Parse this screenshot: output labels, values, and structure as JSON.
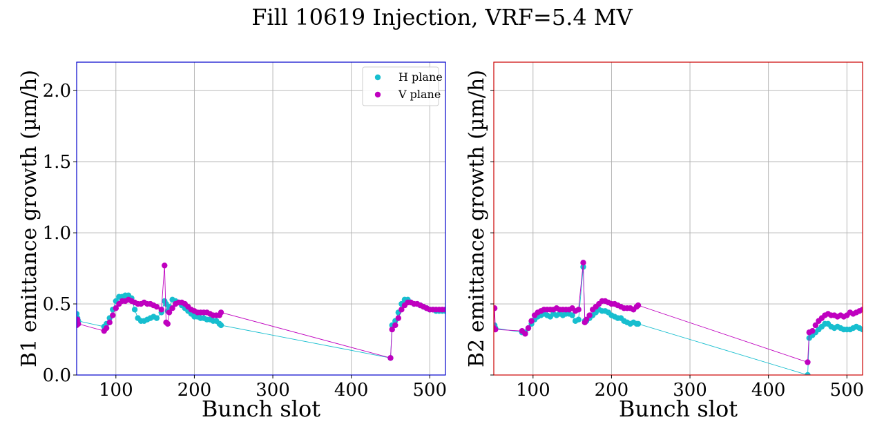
{
  "figure_title": "Fill 10619 Injection, VRF=5.4 MV",
  "colors": {
    "h_plane": "#17becf",
    "v_plane": "#bf00bf",
    "grid": "#b0b0b0",
    "left_frame": "#0000cc",
    "right_frame": "#cc0000"
  },
  "chart_data": [
    {
      "type": "scatter",
      "xlabel": "Bunch slot",
      "ylabel": "B1 emittance growth (µm/h)",
      "xlim": [
        50,
        520
      ],
      "ylim": [
        0,
        2.2
      ],
      "xticks": [
        100,
        200,
        300,
        400,
        500
      ],
      "yticks": [
        0.0,
        0.5,
        1.0,
        1.5,
        2.0
      ],
      "ytick_labels": [
        "0.0",
        "0.5",
        "1.0",
        "1.5",
        "2.0"
      ],
      "grid": true,
      "legend": "top-right",
      "series": [
        {
          "name": "H plane",
          "color": "#17becf",
          "x": [
            50,
            51,
            52,
            85,
            88,
            92,
            96,
            100,
            104,
            108,
            112,
            116,
            120,
            124,
            128,
            132,
            136,
            140,
            144,
            148,
            152,
            158,
            162,
            164,
            166,
            168,
            172,
            176,
            180,
            184,
            188,
            192,
            196,
            200,
            204,
            208,
            212,
            216,
            220,
            224,
            228,
            232,
            234,
            450,
            452,
            456,
            460,
            464,
            468,
            472,
            476,
            480,
            484,
            488,
            492,
            496,
            500,
            504,
            508,
            512,
            516,
            520
          ],
          "y": [
            0.43,
            0.4,
            0.38,
            0.34,
            0.36,
            0.4,
            0.46,
            0.52,
            0.55,
            0.55,
            0.56,
            0.56,
            0.54,
            0.46,
            0.4,
            0.38,
            0.38,
            0.39,
            0.4,
            0.41,
            0.4,
            0.44,
            0.52,
            0.5,
            0.45,
            0.48,
            0.53,
            0.52,
            0.51,
            0.49,
            0.47,
            0.45,
            0.43,
            0.41,
            0.41,
            0.4,
            0.4,
            0.39,
            0.39,
            0.38,
            0.38,
            0.36,
            0.35,
            0.12,
            0.35,
            0.38,
            0.44,
            0.5,
            0.53,
            0.53,
            0.51,
            0.5,
            0.5,
            0.49,
            0.48,
            0.47,
            0.46,
            0.46,
            0.45,
            0.45,
            0.45,
            0.45
          ]
        },
        {
          "name": "V plane",
          "color": "#bf00bf",
          "x": [
            50,
            51,
            52,
            85,
            88,
            92,
            96,
            100,
            104,
            108,
            112,
            116,
            120,
            124,
            128,
            132,
            136,
            140,
            144,
            148,
            152,
            158,
            162,
            164,
            166,
            168,
            172,
            176,
            180,
            184,
            188,
            192,
            196,
            200,
            204,
            208,
            212,
            216,
            220,
            224,
            228,
            232,
            234,
            450,
            452,
            456,
            460,
            464,
            468,
            472,
            476,
            480,
            484,
            488,
            492,
            496,
            500,
            504,
            508,
            512,
            516,
            520
          ],
          "y": [
            0.35,
            0.39,
            0.36,
            0.31,
            0.33,
            0.37,
            0.42,
            0.47,
            0.5,
            0.52,
            0.52,
            0.53,
            0.52,
            0.51,
            0.5,
            0.5,
            0.51,
            0.5,
            0.5,
            0.49,
            0.48,
            0.46,
            0.77,
            0.37,
            0.36,
            0.44,
            0.47,
            0.5,
            0.51,
            0.51,
            0.5,
            0.48,
            0.46,
            0.45,
            0.44,
            0.44,
            0.44,
            0.44,
            0.43,
            0.42,
            0.42,
            0.42,
            0.44,
            0.12,
            0.32,
            0.35,
            0.4,
            0.46,
            0.49,
            0.51,
            0.51,
            0.5,
            0.5,
            0.49,
            0.48,
            0.47,
            0.46,
            0.46,
            0.46,
            0.46,
            0.46,
            0.46
          ]
        }
      ]
    },
    {
      "type": "scatter",
      "xlabel": "Bunch slot",
      "ylabel": "B2 emittance growth (µm/h)",
      "xlim": [
        50,
        520
      ],
      "ylim": [
        0,
        2.2
      ],
      "xticks": [
        100,
        200,
        300,
        400,
        500
      ],
      "yticks": [
        0.0,
        0.5,
        1.0,
        1.5,
        2.0
      ],
      "ytick_labels": [
        "",
        "",
        "",
        "",
        ""
      ],
      "grid": true,
      "series": [
        {
          "name": "H plane",
          "color": "#17becf",
          "x": [
            50,
            51,
            52,
            86,
            90,
            94,
            98,
            102,
            106,
            110,
            114,
            118,
            122,
            126,
            130,
            134,
            138,
            142,
            146,
            150,
            154,
            158,
            164,
            166,
            168,
            172,
            176,
            180,
            184,
            188,
            192,
            196,
            200,
            204,
            208,
            212,
            216,
            220,
            224,
            228,
            232,
            234,
            450,
            452,
            456,
            460,
            464,
            468,
            472,
            476,
            480,
            484,
            488,
            492,
            496,
            500,
            504,
            508,
            512,
            516,
            520
          ],
          "y": [
            0.34,
            0.35,
            0.33,
            0.3,
            0.3,
            0.33,
            0.36,
            0.39,
            0.41,
            0.42,
            0.43,
            0.42,
            0.41,
            0.43,
            0.42,
            0.43,
            0.42,
            0.43,
            0.43,
            0.42,
            0.38,
            0.39,
            0.76,
            0.38,
            0.38,
            0.4,
            0.42,
            0.44,
            0.46,
            0.45,
            0.45,
            0.44,
            0.42,
            0.41,
            0.4,
            0.4,
            0.38,
            0.37,
            0.36,
            0.37,
            0.36,
            0.36,
            0.0,
            0.26,
            0.28,
            0.3,
            0.32,
            0.34,
            0.36,
            0.36,
            0.34,
            0.33,
            0.34,
            0.33,
            0.32,
            0.32,
            0.32,
            0.33,
            0.34,
            0.33,
            0.32
          ]
        },
        {
          "name": "V plane",
          "color": "#bf00bf",
          "x": [
            50,
            51,
            52,
            86,
            90,
            94,
            98,
            102,
            106,
            110,
            114,
            118,
            122,
            126,
            130,
            134,
            138,
            142,
            146,
            150,
            154,
            158,
            164,
            166,
            168,
            172,
            176,
            180,
            184,
            188,
            192,
            196,
            200,
            204,
            208,
            212,
            216,
            220,
            224,
            228,
            232,
            234,
            450,
            452,
            456,
            460,
            464,
            468,
            472,
            476,
            480,
            484,
            488,
            492,
            496,
            500,
            504,
            508,
            512,
            516,
            520
          ],
          "y": [
            0.33,
            0.47,
            0.32,
            0.31,
            0.29,
            0.33,
            0.38,
            0.42,
            0.44,
            0.45,
            0.46,
            0.46,
            0.46,
            0.46,
            0.47,
            0.46,
            0.46,
            0.46,
            0.46,
            0.47,
            0.45,
            0.46,
            0.79,
            0.37,
            0.39,
            0.42,
            0.46,
            0.48,
            0.5,
            0.52,
            0.52,
            0.51,
            0.5,
            0.5,
            0.49,
            0.48,
            0.47,
            0.47,
            0.47,
            0.46,
            0.48,
            0.49,
            0.09,
            0.3,
            0.31,
            0.35,
            0.38,
            0.4,
            0.42,
            0.43,
            0.42,
            0.42,
            0.41,
            0.42,
            0.41,
            0.42,
            0.44,
            0.43,
            0.44,
            0.45,
            0.46
          ]
        }
      ]
    }
  ]
}
